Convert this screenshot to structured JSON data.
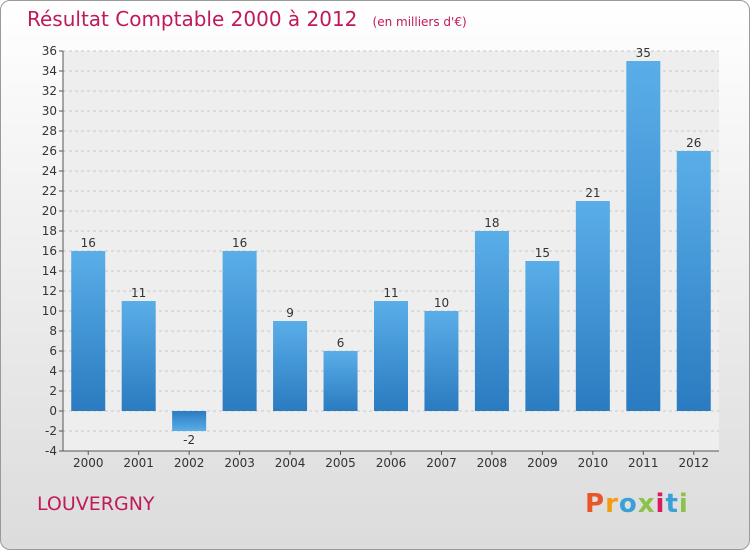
{
  "title": "Résultat Comptable 2000 à 2012",
  "unit": "(en milliers d'€)",
  "city": "LOUVERGNY",
  "logo": {
    "text": "Proxiti",
    "colors": [
      "#e8572a",
      "#f39c12",
      "#3aa0d8",
      "#8bc34a",
      "#d81b60",
      "#3aa0d8",
      "#8bc34a"
    ]
  },
  "chart_data": {
    "type": "bar",
    "categories": [
      "2000",
      "2001",
      "2002",
      "2003",
      "2004",
      "2005",
      "2006",
      "2007",
      "2008",
      "2009",
      "2010",
      "2011",
      "2012"
    ],
    "values": [
      16,
      11,
      -2,
      16,
      9,
      6,
      11,
      10,
      18,
      15,
      21,
      35,
      26
    ],
    "ylim": [
      -4,
      36
    ],
    "yticks": [
      -4,
      -2,
      0,
      2,
      4,
      6,
      8,
      10,
      12,
      14,
      16,
      18,
      20,
      22,
      24,
      26,
      28,
      30,
      32,
      34,
      36
    ],
    "grid": true,
    "bar_color": "#3a8fd6"
  }
}
